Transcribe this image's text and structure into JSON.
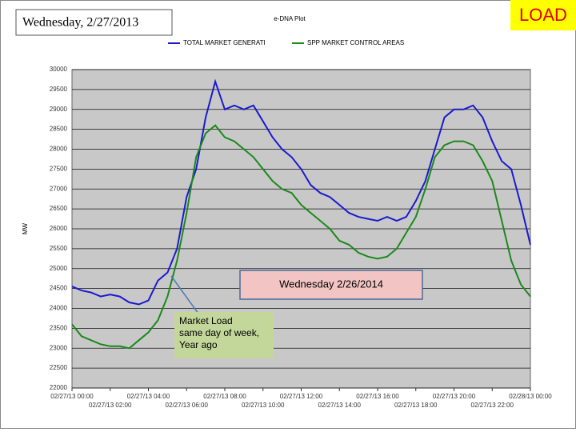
{
  "slide": {
    "date_title": "Wednesday, 2/27/2013",
    "badge": "LOAD",
    "comparison_label": "Wednesday  2/26/2014",
    "annotation": "Market Load same day  of week, Year ago"
  },
  "chart_data": {
    "type": "line",
    "title": "e-DNA Plot",
    "y_label": "MW",
    "x": [
      0,
      0.5,
      1,
      1.5,
      2,
      2.5,
      3,
      3.5,
      4,
      4.5,
      5,
      5.5,
      6,
      6.5,
      7,
      7.5,
      8,
      8.5,
      9,
      9.5,
      10,
      10.5,
      11,
      11.5,
      12,
      12.5,
      13,
      13.5,
      14,
      14.5,
      15,
      15.5,
      16,
      16.5,
      17,
      17.5,
      18,
      18.5,
      19,
      19.5,
      20,
      20.5,
      21,
      21.5,
      22,
      22.5,
      23,
      23.5,
      24
    ],
    "series": [
      {
        "name": "TOTAL MARKET GENERATI",
        "color": "#1a1ad0",
        "values": [
          24550,
          24450,
          24400,
          24300,
          24350,
          24300,
          24150,
          24100,
          24200,
          24700,
          24900,
          25500,
          26800,
          27500,
          28800,
          29700,
          29000,
          29100,
          29000,
          29100,
          28700,
          28300,
          28000,
          27800,
          27500,
          27100,
          26900,
          26800,
          26600,
          26400,
          26300,
          26250,
          26200,
          26300,
          26200,
          26300,
          26700,
          27200,
          28000,
          28800,
          29000,
          29000,
          29100,
          28800,
          28200,
          27700,
          27500,
          26600,
          25600
        ]
      },
      {
        "name": "SPP MARKET CONTROL AREAS",
        "color": "#1a8a1a",
        "values": [
          23600,
          23300,
          23200,
          23100,
          23050,
          23050,
          23000,
          23200,
          23400,
          23700,
          24300,
          25200,
          26400,
          27800,
          28400,
          28600,
          28300,
          28200,
          28000,
          27800,
          27500,
          27200,
          27000,
          26900,
          26600,
          26400,
          26200,
          26000,
          25700,
          25600,
          25400,
          25300,
          25250,
          25300,
          25500,
          25900,
          26300,
          27000,
          27800,
          28100,
          28200,
          28200,
          28100,
          27700,
          27200,
          26200,
          25200,
          24600,
          24300
        ]
      }
    ],
    "xlim": [
      0,
      24
    ],
    "xticks": [
      {
        "value": 0,
        "label": "02/27/13 00:00"
      },
      {
        "value": 2,
        "label": "02/27/13 02:00"
      },
      {
        "value": 4,
        "label": "02/27/13 04:00"
      },
      {
        "value": 6,
        "label": "02/27/13 06:00"
      },
      {
        "value": 8,
        "label": "02/27/13 08:00"
      },
      {
        "value": 10,
        "label": "02/27/13 10:00"
      },
      {
        "value": 12,
        "label": "02/27/13 12:00"
      },
      {
        "value": 14,
        "label": "02/27/13 14:00"
      },
      {
        "value": 16,
        "label": "02/27/13 16:00"
      },
      {
        "value": 18,
        "label": "02/27/13 18:00"
      },
      {
        "value": 20,
        "label": "02/27/13 20:00"
      },
      {
        "value": 22,
        "label": "02/27/13 22:00"
      },
      {
        "value": 24,
        "label": "02/28/13 00:00"
      }
    ],
    "ylim": [
      22000,
      30000
    ],
    "yticks": [
      22000,
      22500,
      23000,
      23500,
      24000,
      24500,
      25000,
      25500,
      26000,
      26500,
      27000,
      27500,
      28000,
      28500,
      29000,
      29500,
      30000
    ],
    "grid": true
  }
}
